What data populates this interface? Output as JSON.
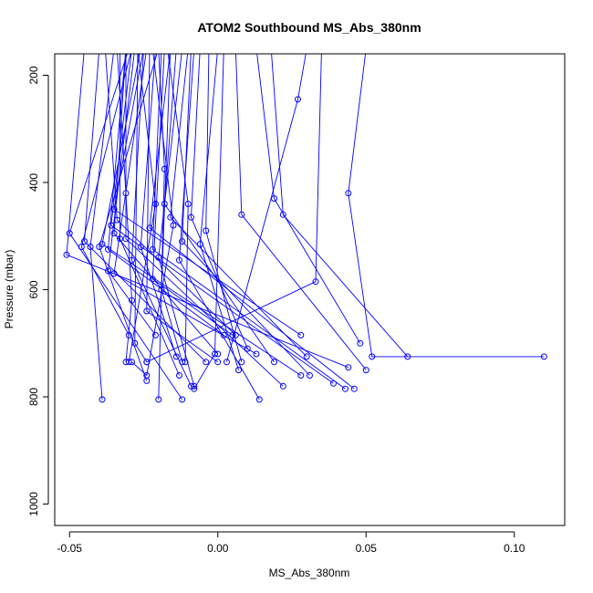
{
  "chart_data": {
    "type": "line",
    "title": "ATOM2 Southbound MS_Abs_380nm",
    "xlabel": "MS_Abs_380nm",
    "ylabel": "Pressure (mbar)",
    "xlim": [
      -0.055,
      0.117
    ],
    "ylim": [
      1040,
      160
    ],
    "y_reversed": true,
    "x_ticks": [
      -0.05,
      0.0,
      0.05,
      0.1
    ],
    "x_tick_labels": [
      "-0.05",
      "0.00",
      "0.05",
      "0.10"
    ],
    "y_ticks": [
      200,
      400,
      600,
      800,
      1000
    ],
    "y_tick_labels": [
      "200",
      "400",
      "600",
      "800",
      "1000"
    ],
    "series_color": "#0000ff",
    "marker": "open-circle",
    "series": [
      {
        "x": [
          -0.027,
          -0.021,
          -0.03
        ],
        "y": [
          150,
          440,
          735
        ]
      },
      {
        "x": [
          -0.022,
          -0.015,
          -0.024,
          -0.029
        ],
        "y": [
          150,
          480,
          760,
          735
        ]
      },
      {
        "x": [
          -0.02,
          -0.018,
          -0.02
        ],
        "y": [
          150,
          375,
          805
        ]
      },
      {
        "x": [
          -0.017,
          -0.01,
          -0.011
        ],
        "y": [
          150,
          440,
          735
        ]
      },
      {
        "x": [
          -0.029,
          -0.046,
          -0.03
        ],
        "y": [
          150,
          520,
          685
        ]
      },
      {
        "x": [
          -0.035,
          -0.043,
          -0.039
        ],
        "y": [
          150,
          520,
          805
        ]
      },
      {
        "x": [
          -0.03,
          -0.05,
          -0.012
        ],
        "y": [
          150,
          495,
          805
        ]
      },
      {
        "x": [
          -0.04,
          -0.045,
          -0.004
        ],
        "y": [
          150,
          510,
          735
        ]
      },
      {
        "x": [
          -0.045,
          -0.051,
          0.044
        ],
        "y": [
          150,
          535,
          745
        ]
      },
      {
        "x": [
          -0.02,
          -0.04,
          -0.024
        ],
        "y": [
          150,
          520,
          770
        ]
      },
      {
        "x": [
          -0.029,
          -0.036,
          0.039
        ],
        "y": [
          150,
          480,
          775
        ]
      },
      {
        "x": [
          -0.031,
          -0.037,
          0.002
        ],
        "y": [
          150,
          525,
          685
        ]
      },
      {
        "x": [
          -0.026,
          -0.039,
          0.028
        ],
        "y": [
          150,
          515,
          760
        ]
      },
      {
        "x": [
          -0.028,
          -0.037,
          -0.021
        ],
        "y": [
          150,
          565,
          685
        ]
      },
      {
        "x": [
          -0.025,
          -0.035,
          0.028
        ],
        "y": [
          150,
          450,
          685
        ]
      },
      {
        "x": [
          -0.024,
          -0.035,
          0.013
        ],
        "y": [
          150,
          570,
          720
        ]
      },
      {
        "x": [
          -0.034,
          -0.031,
          -0.029,
          -0.031
        ],
        "y": [
          150,
          420,
          620,
          735
        ]
      },
      {
        "x": [
          -0.038,
          -0.034,
          0.006
        ],
        "y": [
          150,
          470,
          685
        ]
      },
      {
        "x": [
          -0.027,
          -0.028,
          -0.024
        ],
        "y": [
          150,
          700,
          735
        ]
      },
      {
        "x": [
          -0.023,
          -0.024,
          0.0
        ],
        "y": [
          150,
          640,
          735
        ]
      },
      {
        "x": [
          -0.019,
          -0.022,
          0.043
        ],
        "y": [
          150,
          525,
          785
        ]
      },
      {
        "x": [
          -0.016,
          -0.019,
          -0.012
        ],
        "y": [
          150,
          600,
          735
        ]
      },
      {
        "x": [
          -0.012,
          -0.02,
          -0.008
        ],
        "y": [
          150,
          540,
          780
        ]
      },
      {
        "x": [
          -0.003,
          -0.004,
          0.008
        ],
        "y": [
          150,
          490,
          735
        ]
      },
      {
        "x": [
          0.0,
          -0.006,
          0.007
        ],
        "y": [
          150,
          515,
          750
        ]
      },
      {
        "x": [
          -0.014,
          -0.018,
          0.019
        ],
        "y": [
          150,
          440,
          735
        ]
      },
      {
        "x": [
          -0.01,
          -0.016,
          0.03
        ],
        "y": [
          150,
          465,
          725
        ]
      },
      {
        "x": [
          -0.009,
          -0.012,
          0.031
        ],
        "y": [
          150,
          510,
          760
        ]
      },
      {
        "x": [
          -0.006,
          -0.009,
          0.01
        ],
        "y": [
          150,
          465,
          710
        ]
      },
      {
        "x": [
          0.002,
          -0.001,
          -0.008
        ],
        "y": [
          150,
          720,
          785
        ]
      },
      {
        "x": [
          0.006,
          0.008,
          0.05
        ],
        "y": [
          150,
          460,
          750
        ]
      },
      {
        "x": [
          0.013,
          0.019,
          0.048
        ],
        "y": [
          150,
          430,
          700
        ]
      },
      {
        "x": [
          0.018,
          0.022,
          0.064
        ],
        "y": [
          150,
          460,
          725
        ]
      },
      {
        "x": [
          0.03,
          0.027,
          0.003
        ],
        "y": [
          150,
          245,
          735
        ]
      },
      {
        "x": [
          0.05,
          0.044,
          0.052,
          0.11
        ],
        "y": [
          150,
          420,
          725,
          725
        ]
      },
      {
        "x": [
          0.035,
          0.033,
          -0.024
        ],
        "y": [
          150,
          585,
          735
        ]
      },
      {
        "x": [
          -0.031,
          -0.031,
          0.022
        ],
        "y": [
          150,
          505,
          780
        ]
      },
      {
        "x": [
          -0.016,
          -0.023,
          0.046
        ],
        "y": [
          150,
          485,
          785
        ]
      },
      {
        "x": [
          -0.008,
          -0.013,
          0.014
        ],
        "y": [
          150,
          545,
          805
        ]
      },
      {
        "x": [
          -0.021,
          -0.026,
          -0.014
        ],
        "y": [
          150,
          520,
          725
        ]
      },
      {
        "x": [
          -0.033,
          -0.033,
          -0.013
        ],
        "y": [
          150,
          505,
          760
        ]
      },
      {
        "x": [
          -0.025,
          -0.029,
          -0.009
        ],
        "y": [
          150,
          545,
          780
        ]
      },
      {
        "x": [
          -0.018,
          -0.022,
          0.005
        ],
        "y": [
          150,
          580,
          685
        ]
      },
      {
        "x": [
          -0.031,
          -0.035,
          0.0
        ],
        "y": [
          150,
          495,
          720
        ]
      }
    ]
  }
}
